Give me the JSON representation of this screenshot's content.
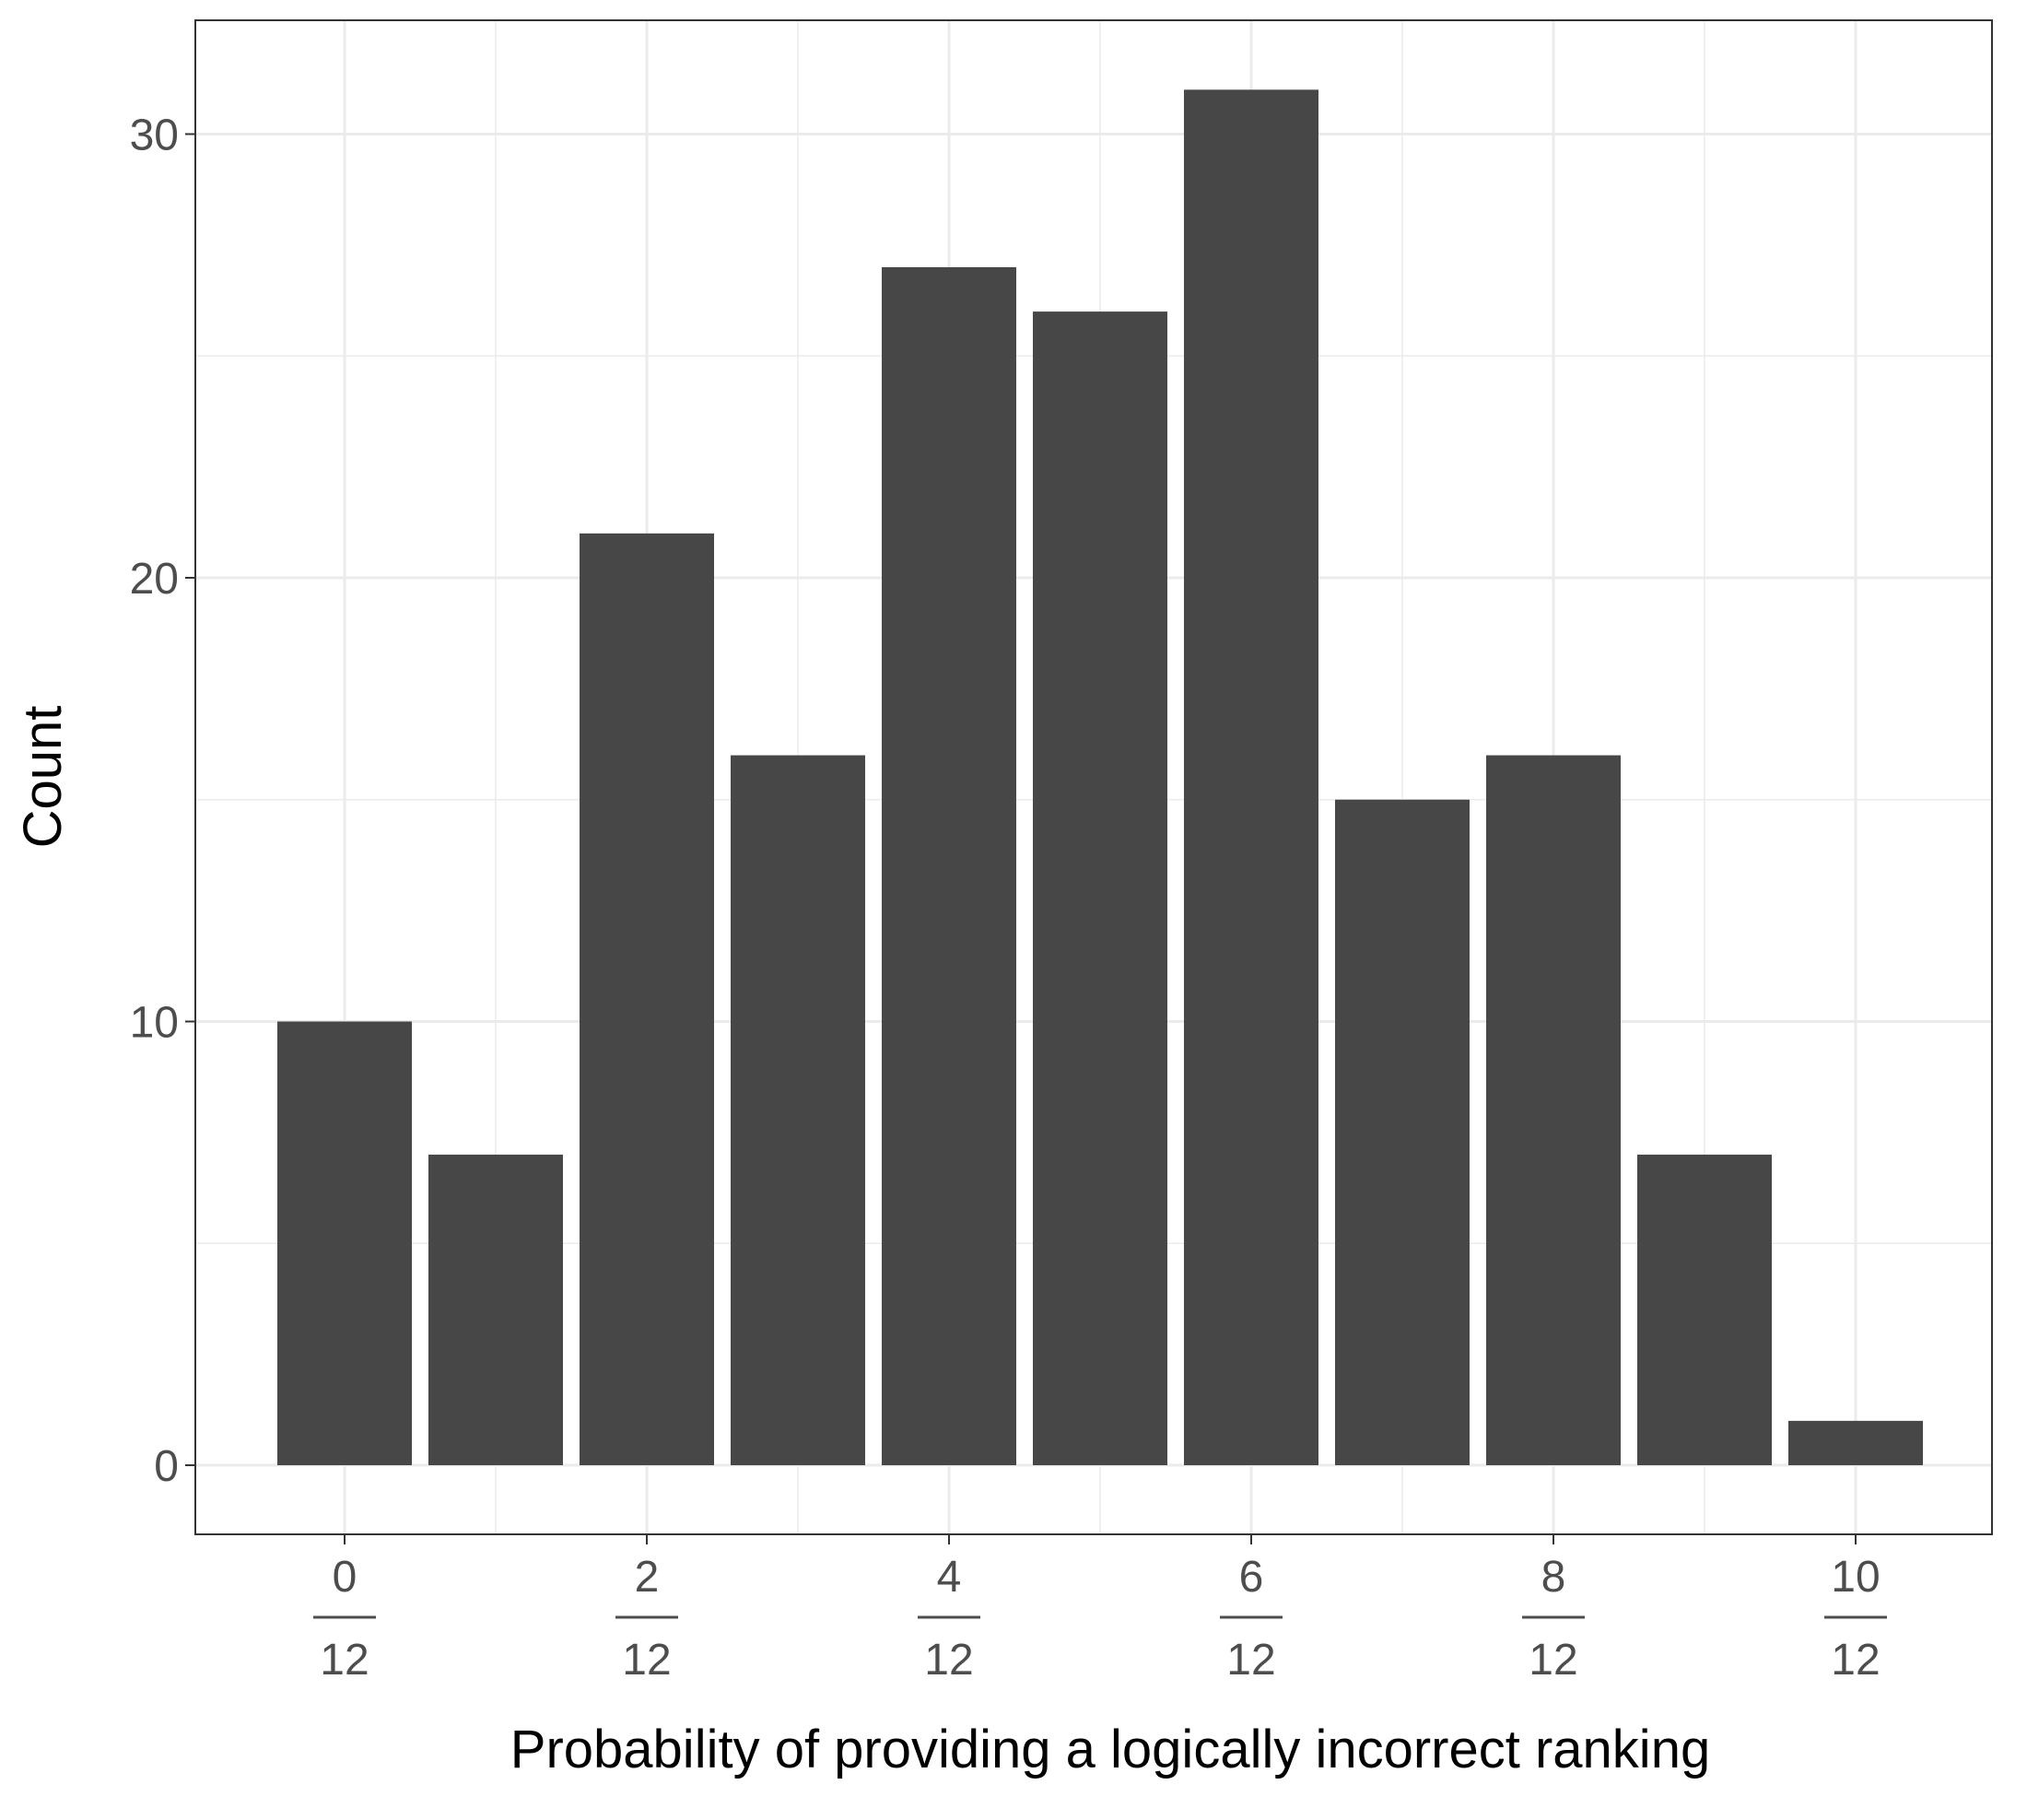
{
  "chart_data": {
    "type": "bar",
    "title": "",
    "xlabel": "Probability of providing a logically incorrect ranking",
    "ylabel": "Count",
    "x": [
      0,
      1,
      2,
      3,
      4,
      5,
      6,
      7,
      8,
      9,
      10
    ],
    "values": [
      10,
      7,
      21,
      16,
      27,
      26,
      31,
      15,
      16,
      7,
      1
    ],
    "x_tick_labels": [
      {
        "x": 0,
        "numerator": "0",
        "denominator": "12"
      },
      {
        "x": 2,
        "numerator": "2",
        "denominator": "12"
      },
      {
        "x": 4,
        "numerator": "4",
        "denominator": "12"
      },
      {
        "x": 6,
        "numerator": "6",
        "denominator": "12"
      },
      {
        "x": 8,
        "numerator": "8",
        "denominator": "12"
      },
      {
        "x": 10,
        "numerator": "10",
        "denominator": "12"
      }
    ],
    "y_ticks": [
      0,
      10,
      20,
      30
    ],
    "xlim": [
      -0.5,
      10.5
    ],
    "ylim": [
      0,
      31
    ],
    "grid": true,
    "bar_color": "#474747",
    "grid_color": "#ebebeb",
    "axis_color": "#333333",
    "tick_label_color": "#4d4d4d"
  }
}
